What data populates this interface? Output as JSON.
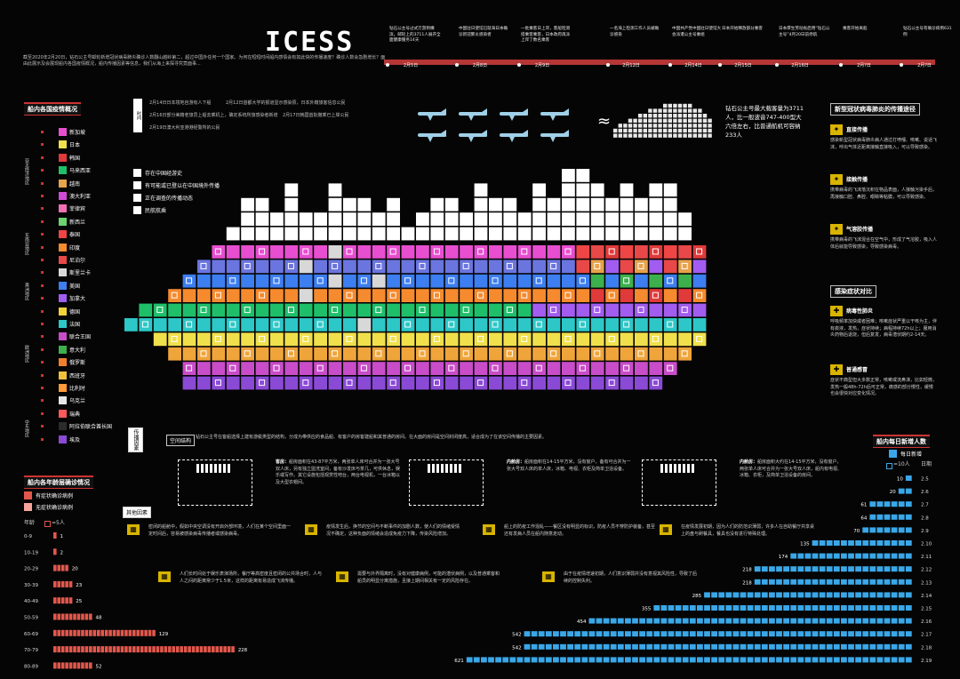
{
  "header": {
    "logo": "ICESS",
    "intro": "截至2020年2月20日，钻石公主号邮轮新增冠状病毒肺炎确诊人数翻山越岭第二，超过中国外任何一个国家。为何在短短时间船内感情会有如此快的传播速度？确诊人数会急剧增长？面由此展示及会展现船内各国疫情概况，船内传播因素等信息，我们从海上来探寻究竟面事..."
  },
  "timeline": {
    "events": [
      "钻石公主号过式万游到横滨，邮轮上的3711人展开全面健康服务14天",
      "中国驻日使馆已就海日本确诊新冠肺炎感染者",
      "一批乘客日上岸，客船检测搭乘客乘客，日本政府再派上岸了数名乘客",
      "一名海上检测工作人员被确诊感染",
      "中国共产党中国驻日使馆大会派遣公主号乘组",
      "日本开始释放部分乘客",
      "日本厚生劳动省启用“钻石公主号”4月20日前停航",
      "乘客开始离船",
      "钻石公主号有确诊病例631例"
    ],
    "dates": [
      "2月5日",
      "2月8日",
      "2月9日",
      "2月12日",
      "2月14日",
      "2月15日",
      "2月16日",
      "2月?日",
      "2月?日"
    ]
  },
  "nationality": {
    "title": "船内各国疫情概况",
    "groups": [
      "亚太经济地区",
      "东南亚地区",
      "美洲地区",
      "欧洲地区",
      "中东地区"
    ],
    "countries": [
      {
        "name": "新加坡",
        "color": "#e84ed0"
      },
      {
        "name": "日本",
        "color": "#f0e04b"
      },
      {
        "name": "韩国",
        "color": "#e03a3a"
      },
      {
        "name": "马来西亚",
        "color": "#1fbf6a"
      },
      {
        "name": "越南",
        "color": "#e8a24b"
      },
      {
        "name": "澳大利亚",
        "color": "#d04ad6"
      },
      {
        "name": "菲律宾",
        "color": "#f26fb6"
      },
      {
        "name": "新西兰",
        "color": "#6bd36f"
      },
      {
        "name": "泰国",
        "color": "#ef4545"
      },
      {
        "name": "印度",
        "color": "#f58a2e"
      },
      {
        "name": "尼泊尔",
        "color": "#e84848"
      },
      {
        "name": "斯里兰卡",
        "color": "#d8d8d8"
      },
      {
        "name": "美国",
        "color": "#3d7ef0"
      },
      {
        "name": "加拿大",
        "color": "#a25cf0"
      },
      {
        "name": "德国",
        "color": "#f2d23b"
      },
      {
        "name": "法国",
        "color": "#2dc7c7"
      },
      {
        "name": "联合王国",
        "color": "#c94cc9"
      },
      {
        "name": "意大利",
        "color": "#3db04e"
      },
      {
        "name": "俄罗斯",
        "color": "#f07f2d"
      },
      {
        "name": "西班牙",
        "color": "#f0c23b"
      },
      {
        "name": "比利时",
        "color": "#ff9a3a"
      },
      {
        "name": "乌克兰",
        "color": "#e6e6e6"
      },
      {
        "name": "瑞典",
        "color": "#ff5a5a"
      },
      {
        "name": "阿拉伯联合酋长国",
        "color": "#2b2b2b"
      },
      {
        "name": "埃及",
        "color": "#8a4ad6"
      }
    ]
  },
  "ship_legend": {
    "items": [
      "存在中国经游史",
      "有可能或已登以在中国境外传播",
      "正在调查的传播动态",
      "民航航乘"
    ]
  },
  "ship_info": {
    "date_notes": [
      "2月14日日本境地自游有人下船",
      "2月12日首都大学的报道显示感染原，日本外籍旅客信息公民",
      "2月16日部分美籍老旅员上船去乘机上，确定系统所旅感染者新增",
      "2月17日韩国首批撤乘已上岸公民",
      "2月19日澳大利亚港港经警所的公民"
    ],
    "comparison": "钻石公主号最大载客量为3711人，比一般波音747-400型大六倍左右，比普通航机可容纳233人",
    "approx_symbol": "≈"
  },
  "transmission": {
    "title": "新型冠状病毒肺炎的传播途径",
    "items": [
      {
        "name": "直接传播",
        "text": "感染新型冠状病毒肺炎病人通过打喷嚏、咳嗽、说话飞沫，呼出气体近距离接触直接吸入，可以导致感染。"
      },
      {
        "name": "接触传播",
        "text": "携带病毒的飞沫落沉积在物品表面，人接触污染手后，再接触口腔、鼻腔、眼睛等粘膜，可以导致感染。"
      },
      {
        "name": "气溶胶传播",
        "text": "携带病毒的飞沫混合在空气中，形成了气溶胶，吸入人体后就能导致感染，导致感染病毒。"
      }
    ]
  },
  "symptoms": {
    "title": "感染症状对比",
    "items": [
      {
        "name": "病毒性肺炎",
        "text": "呼吸频率加快或者困难；咳嗽症状严重以干咳为主，伴有痰液，发热，症状持续；病程持续72h以上；服用消炎药物后退烧，但后复发，病毒潜伏期约2-14天。"
      },
      {
        "name": "普通感冒",
        "text": "症状不典型但大多数正常，咳嗽或流鼻涕，比如轻微，发热一般48h-72h后可正常，痛感的部分慢性，缓慢也会很快对应变化情况。"
      }
    ]
  },
  "age_section": {
    "title": "船内各年龄层确诊情况",
    "legend_sym": "有症状确诊病例",
    "legend_asym": "无症状确诊病例",
    "axis_label": "年龄",
    "unit_label": "=5人",
    "ages": [
      "0-9",
      "10-19",
      "20-29",
      "30-39",
      "40-49",
      "50-59",
      "60-69",
      "70-79",
      "80-89"
    ],
    "values": [
      1,
      2,
      20,
      23,
      25,
      48,
      129,
      228,
      52
    ]
  },
  "ship_structure": {
    "tag_env": "传播因素",
    "tag_space": "空间结构",
    "space_intro": "钻石公主号在客船选择上建有游艇类型的结构，分成为带供应的食品船、有客户的房客建船和其普通的房间。在大面的房间是空间封闭度高，适合成为了在该空间传播的主要因素。",
    "cabins": [
      {
        "name": "客房",
        "text": "船房面积在43-87平方米，两张单人床可合并为一张大号双人床，另有独立盥洗室间，备有沙发床与茶几，可供休息，娱乐或写作。其它设施包括观赏性吧台，两台电视机，一台冰箱以及大型衣帽间。"
      },
      {
        "name": "内舱房",
        "text": "船房面积在14-15平方米，没有窗户，备有可合并为一张大号双人床的单人床，冰箱、电视、衣柜及简单卫浴设备。"
      },
      {
        "name": "内舱房",
        "text": "船房面积大约在14-15平方米，没有窗户，两张单人床可合并为一张大号双人床，船内有电视、冰箱、衣柜，及简单卫浴设备的房间。"
      }
    ],
    "other_tag": "其他因素",
    "factors": [
      "密闭的船舱中，假如中央空调没有开启外部环境，人们在某个空间里面一定时间后，容易被感染病毒传播者或感染病毒。",
      "疫情发生后，换节的空间与不断事件的加剧人数，使人们的情绪受情况不确定，这种负面的情绪会造成免疫力下降，传染风险增加。",
      "船上的防疫工作混乱——餐区没有明显的标识，防疫人员不穿防护装备，甚至还有发病人员在船内随意走动。",
      "在疫情发展初期，因为人们的防范识薄弱，许多人在自助餐厅共享桌上的盘与刷餐具，餐具也没有进行特殊处理。",
      "人们长时间处于娱乐表演场所，餐厅等高密度且密闭的公共场合时，人与人之间的距离常少于1.5米，这样的距离有易造成飞沫传播。",
      "需要与外界隔离时，没有对健康病例，可能的潜伏病例，以及普通乘客和船员的明显分离措施，且接上期间相关有一定的风险存在。",
      "由于在疫情增速初期，人们意识薄弱并没有意视其风险性，导致了后续的控制失利。"
    ]
  },
  "daily": {
    "title": "船内每日新增人数",
    "legend_new": "每日新增",
    "unit_label": "=10人",
    "date_header": "日期",
    "dates": [
      "2.5",
      "2.6",
      "2.7",
      "2.8",
      "2.9",
      "2.10",
      "2.11",
      "2.12",
      "2.13",
      "2.14",
      "2.15",
      "2.16",
      "2.17",
      "2.18",
      "2.19"
    ],
    "values": [
      10,
      20,
      61,
      64,
      70,
      135,
      174,
      218,
      218,
      285,
      355,
      454,
      542,
      542,
      621
    ]
  },
  "chart_data": [
    {
      "type": "bar",
      "title": "船内各年龄层确诊情况",
      "categories": [
        "0-9",
        "10-19",
        "20-29",
        "30-39",
        "40-49",
        "50-59",
        "60-69",
        "70-79",
        "80-89"
      ],
      "values": [
        1,
        2,
        20,
        23,
        25,
        48,
        129,
        228,
        52
      ],
      "ylabel": "年龄"
    },
    {
      "type": "bar",
      "title": "船内每日新增人数",
      "categories": [
        "2.5",
        "2.6",
        "2.7",
        "2.8",
        "2.9",
        "2.10",
        "2.11",
        "2.12",
        "2.13",
        "2.14",
        "2.15",
        "2.16",
        "2.17",
        "2.18",
        "2.19"
      ],
      "values": [
        10,
        20,
        61,
        64,
        70,
        135,
        174,
        218,
        218,
        285,
        355,
        454,
        542,
        542,
        621
      ]
    }
  ],
  "colors": {
    "accent_red": "#c33333",
    "age_bar": "#e2574c",
    "daily_bar": "#3aa7e8",
    "hull_white": "#ffffff"
  }
}
